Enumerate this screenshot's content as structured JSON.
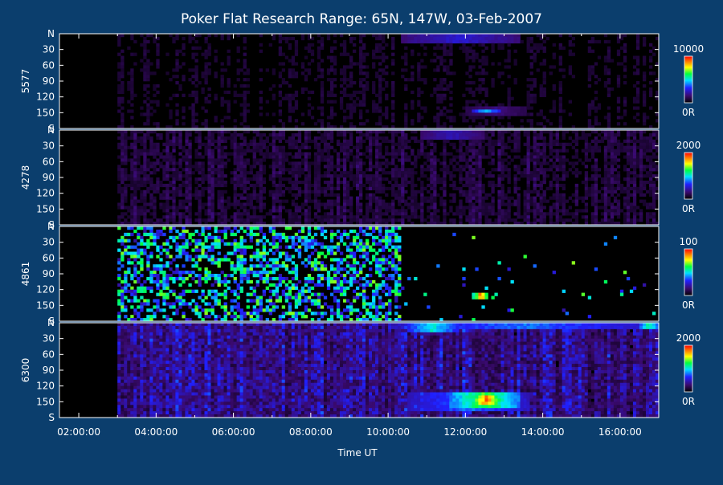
{
  "chart_data": {
    "type": "heatmap",
    "title": "Poker Flat Research Range: 65N, 147W, 03-Feb-2007",
    "xlabel": "Time UT",
    "x_tick_labels": [
      "02:00:00",
      "04:00:00",
      "06:00:00",
      "08:00:00",
      "10:00:00",
      "12:00:00",
      "14:00:00",
      "16:00:00"
    ],
    "x_range_hours": [
      1.5,
      17.0
    ],
    "y_tick_labels": [
      "N",
      "30",
      "60",
      "90",
      "120",
      "150",
      "S"
    ],
    "y_tick_values": [
      0,
      30,
      60,
      90,
      120,
      150,
      180
    ],
    "y_range": [
      0,
      180
    ],
    "colorbar_min_label": "0R",
    "panels": [
      {
        "name": "5577",
        "max_label": "10000",
        "data_start_hour": 3.0,
        "noise": 0.05,
        "vstripe": 0.25,
        "features": [
          {
            "t0": 10.3,
            "t1": 13.4,
            "y0": 0,
            "y1": 15,
            "level": 0.28
          },
          {
            "t0": 12.0,
            "t1": 13.6,
            "y0": 140,
            "y1": 158,
            "level": 0.18
          },
          {
            "t0": 12.2,
            "t1": 12.9,
            "y0": 145,
            "y1": 152,
            "level": 0.5
          }
        ]
      },
      {
        "name": "4278",
        "max_label": "2000",
        "data_start_hour": 3.0,
        "noise": 0.08,
        "vstripe": 0.3,
        "features": [
          {
            "t0": 10.8,
            "t1": 12.5,
            "y0": 0,
            "y1": 18,
            "level": 0.25
          },
          {
            "t0": 12.0,
            "t1": 12.9,
            "y0": 140,
            "y1": 160,
            "level": 0.08
          }
        ]
      },
      {
        "name": "4861",
        "max_label": "100",
        "data_start_hour": 3.0,
        "noise": 0.0,
        "vstripe": 0.0,
        "speckle": [
          {
            "t0": 3.0,
            "t1": 10.3,
            "density": 0.5
          },
          {
            "t0": 10.3,
            "t1": 17.0,
            "density": 0.02
          }
        ],
        "features": [
          {
            "t0": 12.2,
            "t1": 12.6,
            "y0": 128,
            "y1": 136,
            "level": 0.95
          }
        ]
      },
      {
        "name": "6300",
        "max_label": "2000",
        "data_start_hour": 3.0,
        "noise": 0.18,
        "vstripe": 0.35,
        "features": [
          {
            "t0": 10.0,
            "t1": 17.0,
            "y0": 0,
            "y1": 10,
            "level": 0.42
          },
          {
            "t0": 10.5,
            "t1": 11.8,
            "y0": 0,
            "y1": 15,
            "level": 0.55
          },
          {
            "t0": 10.5,
            "t1": 13.7,
            "y0": 130,
            "y1": 165,
            "level": 0.42
          },
          {
            "t0": 11.6,
            "t1": 13.4,
            "y0": 135,
            "y1": 160,
            "level": 0.7
          },
          {
            "t0": 12.2,
            "t1": 12.9,
            "y0": 140,
            "y1": 155,
            "level": 0.98
          },
          {
            "t0": 16.5,
            "t1": 17.0,
            "y0": 0,
            "y1": 12,
            "level": 0.6
          }
        ]
      }
    ]
  }
}
